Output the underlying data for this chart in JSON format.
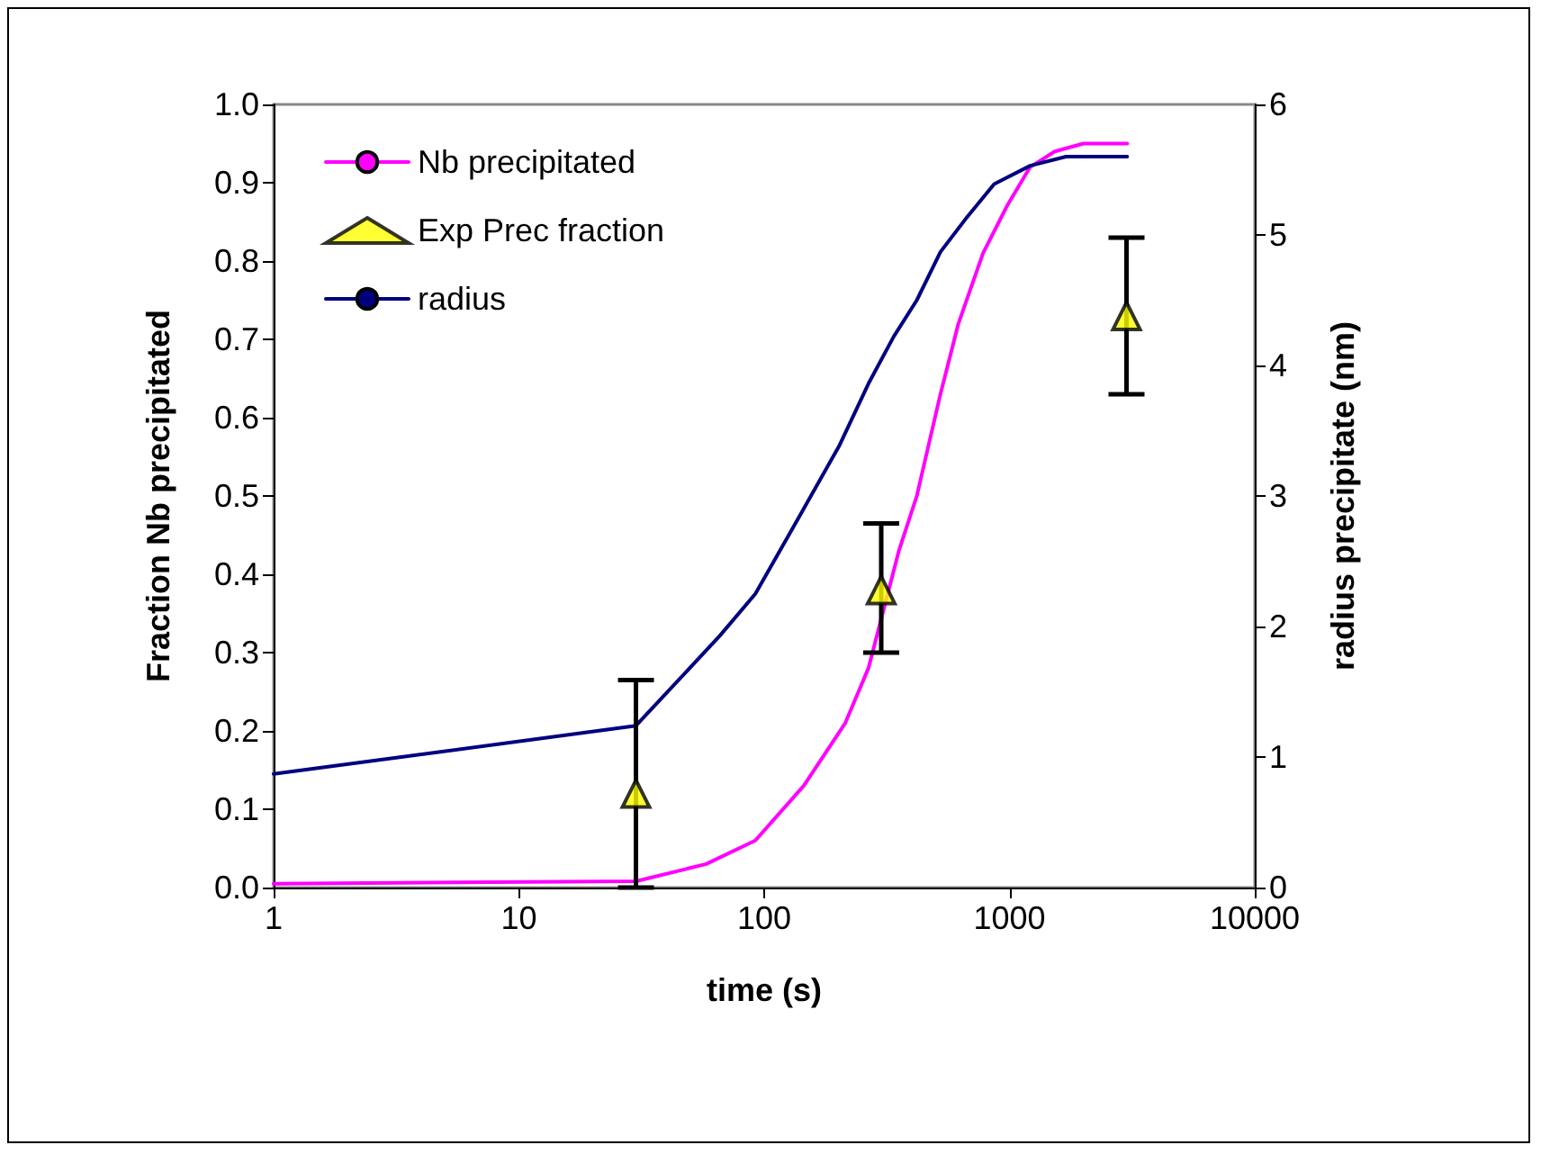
{
  "chart_data": {
    "type": "line",
    "xlabel": "time (s)",
    "ylabel": "Fraction Nb precipitated",
    "y2label": "radius precipitate (nm)",
    "log": "x",
    "xlim": [
      1,
      10000
    ],
    "xticks": [
      1,
      10,
      100,
      1000,
      10000
    ],
    "ylim": [
      0,
      1
    ],
    "yticks": [
      {
        "value": 0,
        "label": "0.0"
      },
      {
        "value": 0.1,
        "label": "0.1"
      },
      {
        "value": 0.2,
        "label": "0.2"
      },
      {
        "value": 0.3,
        "label": "0.3"
      },
      {
        "value": 0.4,
        "label": "0.4"
      },
      {
        "value": 0.5,
        "label": "0.5"
      },
      {
        "value": 0.6,
        "label": "0.6"
      },
      {
        "value": 0.7,
        "label": "0.7"
      },
      {
        "value": 0.8,
        "label": "0.8"
      },
      {
        "value": 0.9,
        "label": "0.9"
      },
      {
        "value": 1,
        "label": "1.0"
      }
    ],
    "y2lim": [
      0,
      6
    ],
    "y2ticks": [
      0,
      1,
      2,
      3,
      4,
      5,
      6
    ],
    "grid": false,
    "legend": "top left",
    "series": [
      {
        "name": "Nb precipitated",
        "color": "#ff00ff",
        "marker": "none",
        "x": [
          1,
          30,
          58,
          92,
          145,
          214,
          266,
          354,
          419,
          472,
          523,
          619,
          780,
          976,
          1214,
          1530,
          2000,
          3020
        ],
        "values": [
          0.005,
          0.008,
          0.03,
          0.06,
          0.13,
          0.21,
          0.28,
          0.43,
          0.5,
          0.57,
          0.63,
          0.72,
          0.81,
          0.87,
          0.92,
          0.94,
          0.95,
          0.95
        ]
      },
      {
        "name": "Exp Prec fraction",
        "type": "scatter",
        "color": "#ffff00",
        "marker": "triangle",
        "x": [
          30,
          300,
          3000
        ],
        "values": [
          0.12,
          0.38,
          0.73
        ],
        "errors": [
          [
            0,
            0.265
          ],
          [
            0.3,
            0.465
          ],
          [
            0.63,
            0.83
          ]
        ]
      },
      {
        "name": "radius",
        "axis": "y2",
        "color": "#000080",
        "marker": "none",
        "x": [
          1,
          30,
          66,
          92,
          135,
          203,
          266,
          337,
          419,
          523,
          661,
          866,
          1214,
          1700,
          3020
        ],
        "values": [
          0.87,
          1.24,
          1.93,
          2.25,
          2.8,
          3.39,
          3.86,
          4.22,
          4.5,
          4.87,
          5.12,
          5.39,
          5.53,
          5.6,
          5.6
        ]
      }
    ]
  }
}
